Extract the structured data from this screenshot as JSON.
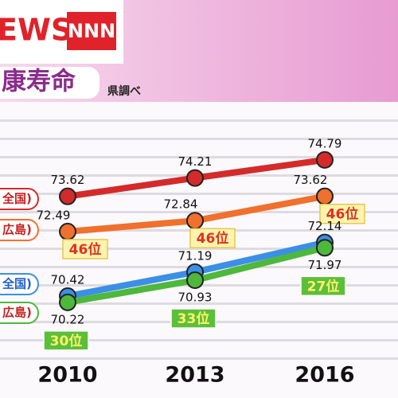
{
  "header": {
    "brand": "EWS",
    "logo": "NNN"
  },
  "chart_data": {
    "type": "line",
    "title": "康寿命",
    "source": "県調べ",
    "categories": [
      "2010",
      "2013",
      "2016"
    ],
    "ylim": [
      68.3,
      76.6
    ],
    "series": [
      {
        "name": "全国)",
        "color": "#d32b2b",
        "values": [
          73.62,
          74.21,
          74.79
        ]
      },
      {
        "name": "広島)",
        "color": "#f0702e",
        "values": [
          72.49,
          72.84,
          73.62
        ],
        "rank_labels": [
          "46位",
          "46位",
          "46位"
        ]
      },
      {
        "name": "全国)",
        "color": "#3b8fe6",
        "values": [
          70.42,
          71.19,
          72.14
        ]
      },
      {
        "name": "広島)",
        "color": "#4db83c",
        "values": [
          70.22,
          70.93,
          71.97
        ],
        "rank_labels": [
          "30位",
          "33位",
          "27位"
        ]
      }
    ]
  }
}
